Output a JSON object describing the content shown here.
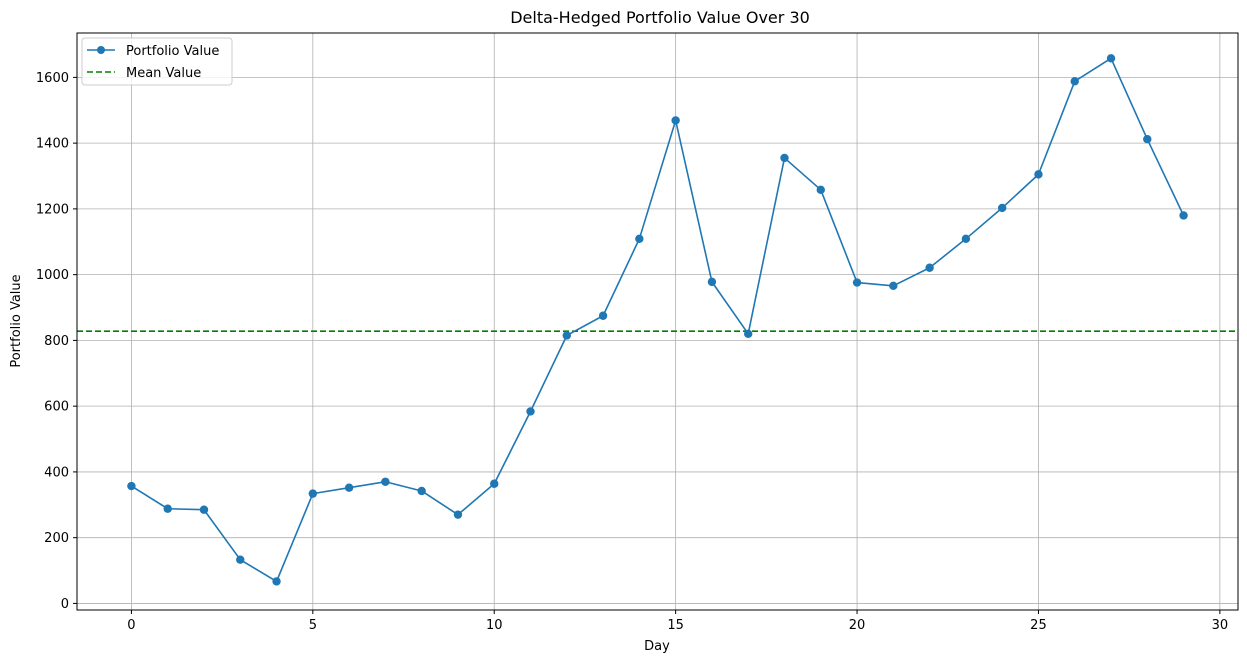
{
  "chart_data": {
    "type": "line",
    "title": "Delta-Hedged Portfolio Value Over 30",
    "xlabel": "Day",
    "ylabel": "Portfolio Value",
    "xlim": [
      -1.5,
      30.5
    ],
    "ylim": [
      -20,
      1735
    ],
    "xticks": [
      0,
      5,
      10,
      15,
      20,
      25,
      30
    ],
    "yticks": [
      0,
      200,
      400,
      600,
      800,
      1000,
      1200,
      1400,
      1600
    ],
    "grid": true,
    "legend_position": "top-left",
    "series": [
      {
        "name": "Portfolio Value",
        "color": "#1f77b4",
        "marker": "circle",
        "x": [
          0,
          1,
          2,
          3,
          4,
          5,
          6,
          7,
          8,
          9,
          10,
          11,
          12,
          13,
          14,
          15,
          16,
          17,
          18,
          19,
          20,
          21,
          22,
          23,
          24,
          25,
          26,
          27,
          28,
          29
        ],
        "y": [
          357,
          288,
          285,
          133,
          67,
          334,
          352,
          370,
          342,
          270,
          364,
          584,
          815,
          875,
          1109,
          1469,
          978,
          820,
          1355,
          1258,
          976,
          966,
          1021,
          1109,
          1203,
          1305,
          1588,
          1658,
          1412,
          1180
        ]
      }
    ],
    "reference_lines": [
      {
        "name": "Mean Value",
        "orientation": "horizontal",
        "value": 828,
        "color": "#008000",
        "style": "dashed"
      }
    ]
  }
}
